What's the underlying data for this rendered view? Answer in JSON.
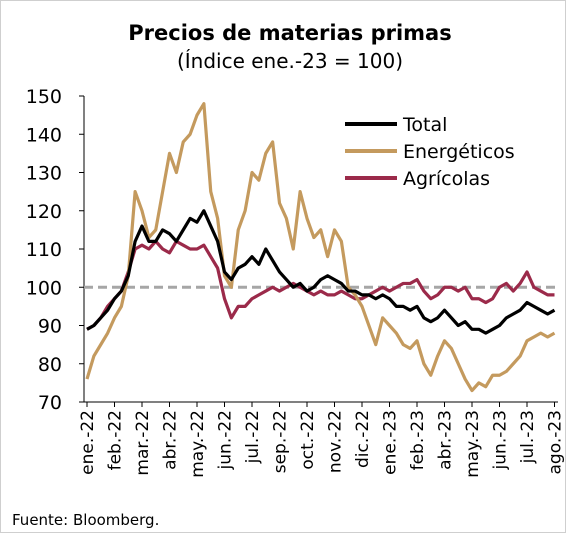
{
  "chart_data": {
    "type": "line",
    "title": "Precios de materias primas",
    "subtitle": "(Índice ene.-23 = 100)",
    "source": "Fuente: Bloomberg.",
    "categories": [
      "ene.-22",
      null,
      null,
      null,
      "feb.-22",
      null,
      null,
      null,
      "mar.-22",
      null,
      null,
      null,
      "abr.-22",
      null,
      null,
      null,
      "may.-22",
      null,
      null,
      null,
      "jun.-22",
      null,
      null,
      null,
      "jul.-22",
      null,
      null,
      null,
      "sep.-22",
      null,
      null,
      null,
      "oct.-22",
      null,
      null,
      null,
      "nov.-22",
      null,
      null,
      null,
      "dic.-22",
      null,
      null,
      null,
      "ene.-23",
      null,
      null,
      null,
      "feb.-23",
      null,
      null,
      null,
      "abr.-23",
      null,
      null,
      null,
      "may.-23",
      null,
      null,
      null,
      "jun.-23",
      null,
      null,
      null,
      "jul.-23",
      null,
      null,
      null,
      "ago.-23"
    ],
    "series": [
      {
        "name": "Total",
        "color": "#000000",
        "values": [
          89,
          90,
          92,
          94,
          97,
          99,
          103,
          112,
          116,
          112,
          112,
          115,
          114,
          112,
          115,
          118,
          117,
          120,
          116,
          112,
          104,
          102,
          105,
          106,
          108,
          106,
          110,
          107,
          104,
          102,
          100,
          101,
          99,
          100,
          102,
          103,
          102,
          101,
          99,
          99,
          98,
          98,
          97,
          98,
          97,
          95,
          95,
          94,
          95,
          92,
          91,
          92,
          94,
          92,
          90,
          91,
          89,
          89,
          88,
          89,
          90,
          92,
          93,
          94,
          96,
          95,
          94,
          93,
          94
        ]
      },
      {
        "name": "Energéticos",
        "color": "#c49a5e",
        "values": [
          76,
          82,
          85,
          88,
          92,
          95,
          103,
          125,
          120,
          113,
          115,
          125,
          135,
          130,
          138,
          140,
          145,
          148,
          125,
          118,
          103,
          100,
          115,
          120,
          130,
          128,
          135,
          138,
          122,
          118,
          110,
          125,
          118,
          113,
          115,
          108,
          115,
          112,
          100,
          98,
          95,
          90,
          85,
          92,
          90,
          88,
          85,
          84,
          86,
          80,
          77,
          82,
          86,
          84,
          80,
          76,
          73,
          75,
          74,
          77,
          77,
          78,
          80,
          82,
          86,
          87,
          88,
          87,
          88
        ]
      },
      {
        "name": "Agrícolas",
        "color": "#9b2a4a",
        "values": [
          89,
          90,
          92,
          95,
          97,
          99,
          104,
          110,
          111,
          110,
          112,
          110,
          109,
          112,
          111,
          110,
          110,
          111,
          108,
          105,
          97,
          92,
          95,
          95,
          97,
          98,
          99,
          100,
          99,
          100,
          101,
          100,
          99,
          98,
          99,
          98,
          98,
          99,
          98,
          97,
          97,
          98,
          99,
          100,
          99,
          100,
          101,
          101,
          102,
          99,
          97,
          98,
          100,
          100,
          99,
          100,
          97,
          97,
          96,
          97,
          100,
          101,
          99,
          101,
          104,
          100,
          99,
          98,
          98
        ]
      }
    ],
    "ylim": [
      70,
      150
    ],
    "yticks": [
      70,
      80,
      90,
      100,
      110,
      120,
      130,
      140,
      150
    ],
    "reference_line": 100,
    "legend": "upper right"
  }
}
